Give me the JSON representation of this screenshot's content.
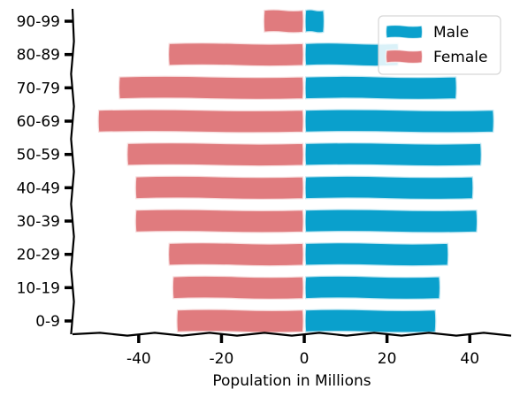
{
  "chart_data": {
    "type": "bar",
    "orientation": "horizontal",
    "layout": "population-pyramid",
    "title": "",
    "xlabel": "Population in Millions",
    "ylabel": "",
    "categories": [
      "0-9",
      "10-19",
      "20-29",
      "30-39",
      "40-49",
      "50-59",
      "60-69",
      "70-79",
      "80-89",
      "90-99"
    ],
    "series": [
      {
        "name": "Male",
        "color": "#0aa0cc",
        "values": [
          32,
          33,
          35,
          42,
          41,
          43,
          46,
          37,
          23,
          5
        ]
      },
      {
        "name": "Female",
        "color": "#e07b7e",
        "values": [
          -31,
          -32,
          -33,
          -41,
          -41,
          -43,
          -50,
          -45,
          -33,
          -10
        ]
      }
    ],
    "xlim": [
      -56,
      50
    ],
    "xticks": [
      -40,
      -20,
      0,
      20,
      40
    ],
    "grid": false,
    "legend_position": "top-right",
    "style": "xkcd"
  }
}
